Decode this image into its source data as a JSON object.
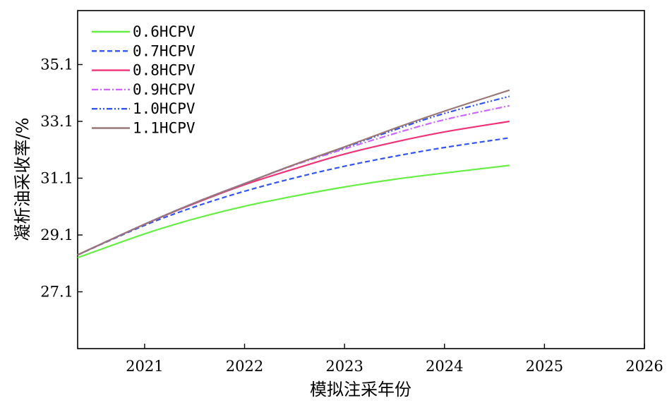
{
  "chart_data": {
    "type": "line",
    "xlabel": "模拟注采年份",
    "ylabel": "凝析油采收率/%",
    "xlim": [
      2020.33,
      2026
    ],
    "ylim": [
      25.1,
      37.0
    ],
    "x_ticks": [
      2021,
      2022,
      2023,
      2024,
      2025,
      2026
    ],
    "y_ticks": [
      27.1,
      29.1,
      31.1,
      33.1,
      35.1
    ],
    "legend_position": "top-left",
    "grid": false,
    "series": [
      {
        "name": "0.6HCPV",
        "color": "#66ee44",
        "dash": "solid",
        "x": [
          2020.33,
          2021,
          2021.5,
          2022,
          2022.5,
          2023,
          2023.5,
          2024,
          2024.65
        ],
        "y": [
          28.3,
          29.14,
          29.67,
          30.11,
          30.47,
          30.79,
          31.06,
          31.28,
          31.55
        ]
      },
      {
        "name": "0.7HCPV",
        "color": "#3355ee",
        "dash": "dashed",
        "x": [
          2020.33,
          2021,
          2021.5,
          2022,
          2022.5,
          2023,
          2023.5,
          2024,
          2024.65
        ],
        "y": [
          28.4,
          29.44,
          30.09,
          30.64,
          31.11,
          31.52,
          31.87,
          32.18,
          32.52
        ]
      },
      {
        "name": "0.8HCPV",
        "color": "#ee3377",
        "dash": "solid",
        "x": [
          2020.33,
          2021,
          2021.5,
          2022,
          2022.5,
          2023,
          2023.5,
          2024,
          2024.65
        ],
        "y": [
          28.4,
          29.48,
          30.21,
          30.87,
          31.43,
          31.95,
          32.37,
          32.73,
          33.1
        ]
      },
      {
        "name": "0.9HCPV",
        "color": "#cc66ff",
        "dash": "dashdot",
        "x": [
          2020.33,
          2021,
          2021.5,
          2022,
          2022.5,
          2023,
          2023.5,
          2024,
          2024.65
        ],
        "y": [
          28.4,
          29.48,
          30.23,
          30.91,
          31.56,
          32.13,
          32.67,
          33.16,
          33.65
        ]
      },
      {
        "name": "1.0HCPV",
        "color": "#3355ee",
        "dash": "dashdotdot",
        "x": [
          2020.33,
          2021,
          2021.5,
          2022,
          2022.5,
          2023,
          2023.5,
          2024,
          2024.65
        ],
        "y": [
          28.4,
          29.48,
          30.23,
          30.91,
          31.58,
          32.18,
          32.8,
          33.38,
          33.98
        ]
      },
      {
        "name": "1.1HCPV",
        "color": "#997777",
        "dash": "solid",
        "x": [
          2020.33,
          2021,
          2021.5,
          2022,
          2022.5,
          2023,
          2023.5,
          2024,
          2024.65
        ],
        "y": [
          28.4,
          29.48,
          30.23,
          30.91,
          31.58,
          32.2,
          32.85,
          33.46,
          34.2
        ]
      }
    ]
  }
}
